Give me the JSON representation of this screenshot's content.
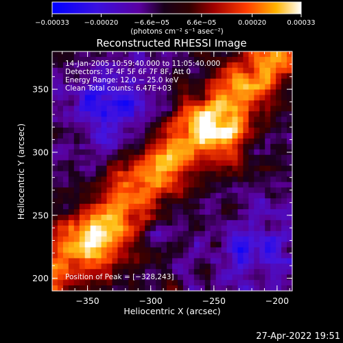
{
  "chart_data": {
    "type": "heatmap",
    "title": "Reconstructed RHESSI Image",
    "xlabel": "Heliocentric X (arcsec)",
    "ylabel": "Heliocentric Y (arcsec)",
    "xlim": [
      -378,
      -188
    ],
    "ylim": [
      190,
      380
    ],
    "x_ticks": [
      -350,
      -300,
      -250,
      -200
    ],
    "x_tick_labels": [
      "−350",
      "−300",
      "−250",
      "−200"
    ],
    "y_ticks": [
      200,
      250,
      300,
      350
    ],
    "y_tick_labels": [
      "200",
      "250",
      "300",
      "350"
    ],
    "colorbar": {
      "range": [
        -0.00033,
        0.00033
      ],
      "tick_values": [
        -0.00033,
        -0.0002,
        -6.6e-05,
        6.6e-05,
        0.0002,
        0.00033
      ],
      "tick_labels": [
        "−0.00033",
        "−0.00020",
        "−6.6e−05",
        "6.6e−05",
        "0.00020",
        "0.00033"
      ],
      "units_label": "(photons cm⁻² s⁻¹ asec⁻²)"
    },
    "colormap": [
      "#0000ff",
      "#5a00c8",
      "#190019",
      "#730000",
      "#e61400",
      "#ff6400",
      "#ffc832",
      "#ffffff"
    ],
    "annotations": {
      "time": "14‐Jan‐2005 10:59:40.000 to 11:05:40.000",
      "detectors": "Detectors: 3F 4F 5F 6F 7F 8F, Att 0",
      "energy": "Energy Range: 12.0 − 25.0 keV",
      "clean": "Clean    Total counts: 6.47E+03",
      "peak": "Position of Peak = [−328,243]"
    },
    "peak_position": [
      -328,
      243
    ],
    "grid": false
  },
  "footer": {
    "timestamp": "27‐Apr‐2022 19:51"
  }
}
